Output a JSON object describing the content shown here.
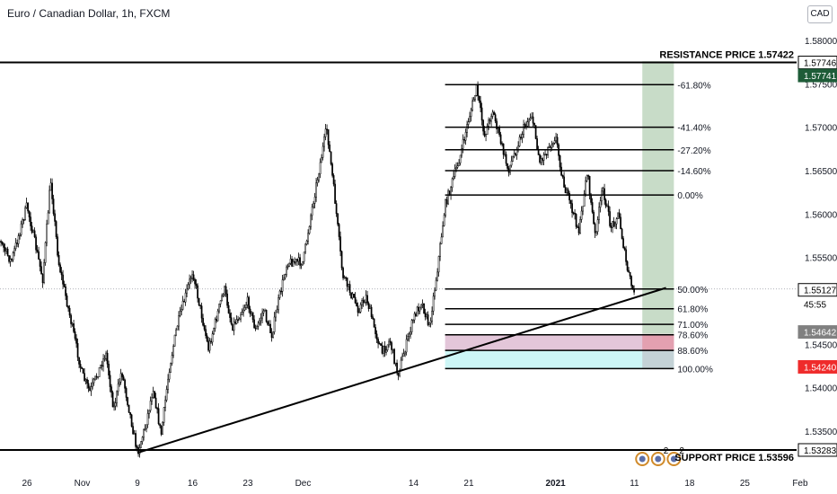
{
  "header": {
    "title": "Euro / Canadian Dollar, 1h, FXCM",
    "currency": "CAD"
  },
  "colors": {
    "candle": "#000000",
    "target_zone": "#c8dcc8",
    "stop_zone": "#ecc8d4",
    "entry_zone": "#c8f5f5",
    "red_tag": "#ef2b2b",
    "green_tag": "#1e5c38",
    "grey_tag": "#808080"
  },
  "chart_data": {
    "type": "candlestick",
    "instrument": "Euro / Canadian Dollar",
    "timeframe": "1h",
    "x_tick_labels": [
      "26",
      "Nov",
      "9",
      "16",
      "23",
      "Dec",
      "14",
      "21",
      "2021",
      "11",
      "18",
      "25",
      "Feb"
    ],
    "y_tick_labels": [
      "1.58000",
      "1.57500",
      "1.57000",
      "1.56500",
      "1.56000",
      "1.55500",
      "1.55000",
      "1.54500",
      "1.54000",
      "1.53500"
    ],
    "ylim": [
      1.5305,
      1.5815
    ],
    "close_path": [
      [
        "2020-10-21",
        1.5595
      ],
      [
        "2020-10-24",
        1.5545
      ],
      [
        "2020-10-26",
        1.561
      ],
      [
        "2020-10-28",
        1.5525
      ],
      [
        "2020-10-29",
        1.564
      ],
      [
        "2020-10-30",
        1.5545
      ],
      [
        "2020-11-02",
        1.5415
      ],
      [
        "2020-11-03",
        1.5395
      ],
      [
        "2020-11-05",
        1.544
      ],
      [
        "2020-11-06",
        1.5375
      ],
      [
        "2020-11-07",
        1.542
      ],
      [
        "2020-11-09",
        1.5325
      ],
      [
        "2020-11-10",
        1.5355
      ],
      [
        "2020-11-11",
        1.54
      ],
      [
        "2020-11-12",
        1.5345
      ],
      [
        "2020-11-13",
        1.542
      ],
      [
        "2020-11-14",
        1.547
      ],
      [
        "2020-11-16",
        1.5535
      ],
      [
        "2020-11-17",
        1.549
      ],
      [
        "2020-11-18",
        1.5445
      ],
      [
        "2020-11-20",
        1.5515
      ],
      [
        "2020-11-21",
        1.547
      ],
      [
        "2020-11-23",
        1.55
      ],
      [
        "2020-11-24",
        1.5465
      ],
      [
        "2020-11-25",
        1.549
      ],
      [
        "2020-11-26",
        1.546
      ],
      [
        "2020-11-27",
        1.5505
      ],
      [
        "2020-11-28",
        1.5545
      ],
      [
        "2020-11-30",
        1.5545
      ],
      [
        "2020-12-01",
        1.56
      ],
      [
        "2020-12-02",
        1.565
      ],
      [
        "2020-12-03",
        1.57
      ],
      [
        "2020-12-04",
        1.562
      ],
      [
        "2020-12-05",
        1.553
      ],
      [
        "2020-12-07",
        1.549
      ],
      [
        "2020-12-08",
        1.5505
      ],
      [
        "2020-12-09",
        1.547
      ],
      [
        "2020-12-10",
        1.544
      ],
      [
        "2020-12-11",
        1.5455
      ],
      [
        "2020-12-12",
        1.5415
      ],
      [
        "2020-12-14",
        1.548
      ],
      [
        "2020-12-15",
        1.55
      ],
      [
        "2020-12-16",
        1.547
      ],
      [
        "2020-12-17",
        1.5535
      ],
      [
        "2020-12-18",
        1.561
      ],
      [
        "2020-12-20",
        1.567
      ],
      [
        "2020-12-21",
        1.571
      ],
      [
        "2020-12-22",
        1.5745
      ],
      [
        "2020-12-23",
        1.569
      ],
      [
        "2020-12-24",
        1.572
      ],
      [
        "2020-12-26",
        1.565
      ],
      [
        "2020-12-28",
        1.57
      ],
      [
        "2020-12-29",
        1.5715
      ],
      [
        "2020-12-30",
        1.566
      ],
      [
        "2021-01-01",
        1.569
      ],
      [
        "2021-01-02",
        1.5635
      ],
      [
        "2021-01-04",
        1.558
      ],
      [
        "2021-01-05",
        1.565
      ],
      [
        "2021-01-06",
        1.5575
      ],
      [
        "2021-01-07",
        1.563
      ],
      [
        "2021-01-08",
        1.5585
      ],
      [
        "2021-01-09",
        1.56
      ],
      [
        "2021-01-10",
        1.554
      ],
      [
        "2021-01-11",
        1.5505
      ]
    ],
    "trendline": [
      [
        "2020-11-09",
        1.5325
      ],
      [
        "2021-01-15",
        1.5515
      ]
    ],
    "annotations": {
      "resistance_label": "RESISTANCE PRICE 1.57422",
      "support_label": "SUPPORT PRICE 1.53596",
      "resistance_level": 1.57746,
      "support_level": 1.53283
    },
    "fibonacci": {
      "start": "2020-12-18",
      "end": "2021-01-16",
      "levels": [
        {
          "label": "-61.80%",
          "price": 1.5749
        },
        {
          "label": "-41.40%",
          "price": 1.57
        },
        {
          "label": "-27.20%",
          "price": 1.5674
        },
        {
          "label": "-14.60%",
          "price": 1.565
        },
        {
          "label": "0.00%",
          "price": 1.5622
        },
        {
          "label": "50.00%",
          "price": 1.55137
        },
        {
          "label": "61.80%",
          "price": 1.5491
        },
        {
          "label": "71.00%",
          "price": 1.5473
        },
        {
          "label": "78.60%",
          "price": 1.5461
        },
        {
          "label": "88.60%",
          "price": 1.5443
        },
        {
          "label": "100.00%",
          "price": 1.5422
        }
      ]
    },
    "position": {
      "start": "2021-01-12",
      "end": "2021-01-16",
      "target_top": 1.5776,
      "entry": 1.5462,
      "stop": 1.5422
    },
    "price_tags": [
      {
        "text": "1.57746",
        "price": 1.57746,
        "style": "outline"
      },
      {
        "text": "1.57741",
        "price": 1.57741,
        "style": "green"
      },
      {
        "text": "1.55127",
        "price": 1.55127,
        "style": "outline"
      },
      {
        "text": "45:55",
        "price": 1.55127,
        "style": "outline-sub"
      },
      {
        "text": "1.54642",
        "price": 1.54642,
        "style": "grey"
      },
      {
        "text": "1.54240",
        "price": 1.5424,
        "style": "red"
      },
      {
        "text": "1.53283",
        "price": 1.53283,
        "style": "outline"
      }
    ],
    "event_markers": [
      {
        "date": "2021-01-12",
        "count": ""
      },
      {
        "date": "2021-01-14",
        "count": "2"
      },
      {
        "date": "2021-01-16",
        "count": "2"
      }
    ]
  }
}
